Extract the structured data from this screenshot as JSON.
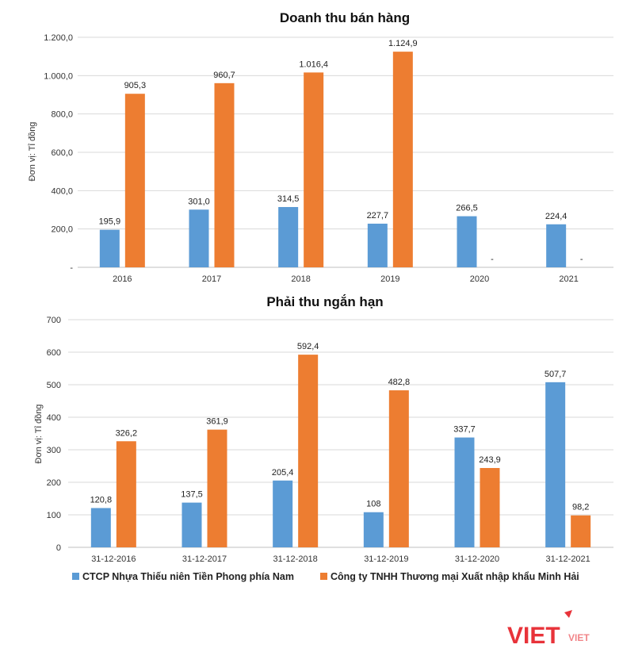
{
  "colors": {
    "blue": "#5b9bd5",
    "orange": "#ed7d31",
    "logo": "#e8333a"
  },
  "legend": [
    {
      "name": "CTCP Nhựa Thiếu niên Tiền Phong phía Nam",
      "color": "#5b9bd5"
    },
    {
      "name": "Công ty TNHH Thương mại Xuất nhập khẩu Minh Hải",
      "color": "#ed7d31"
    }
  ],
  "watermark": {
    "brand": "VIET",
    "small": "VIET"
  },
  "chart_data": [
    {
      "type": "bar",
      "title": "Doanh thu bán hàng",
      "ylabel": "Đơn vị: Tỉ đồng",
      "ylim": [
        0,
        1200
      ],
      "yticks": [
        0,
        200,
        400,
        600,
        800,
        1000,
        1200
      ],
      "ytick_labels": [
        "-",
        "200,0",
        "400,0",
        "600,0",
        "800,0",
        "1.000,0",
        "1.200,0"
      ],
      "categories": [
        "2016",
        "2017",
        "2018",
        "2019",
        "2020",
        "2021"
      ],
      "series": [
        {
          "name": "CTCP Nhựa Thiếu niên Tiền Phong phía Nam",
          "color": "#5b9bd5",
          "values": [
            195.9,
            301.0,
            314.5,
            227.7,
            266.5,
            224.4
          ],
          "labels": [
            "195,9",
            "301,0",
            "314,5",
            "227,7",
            "266,5",
            "224,4"
          ]
        },
        {
          "name": "Công ty TNHH Thương mại Xuất nhập khẩu Minh Hải",
          "color": "#ed7d31",
          "values": [
            905.3,
            960.7,
            1016.4,
            1124.9,
            0,
            0
          ],
          "labels": [
            "905,3",
            "960,7",
            "1.016,4",
            "1.124,9",
            "-",
            "-"
          ]
        }
      ]
    },
    {
      "type": "bar",
      "title": "Phải thu ngắn hạn",
      "ylabel": "Đơn vị: Tỉ đồng",
      "ylim": [
        0,
        700
      ],
      "yticks": [
        0,
        100,
        200,
        300,
        400,
        500,
        600,
        700
      ],
      "ytick_labels": [
        "0",
        "100",
        "200",
        "300",
        "400",
        "500",
        "600",
        "700"
      ],
      "categories": [
        "31-12-2016",
        "31-12-2017",
        "31-12-2018",
        "31-12-2019",
        "31-12-2020",
        "31-12-2021"
      ],
      "series": [
        {
          "name": "CTCP Nhựa Thiếu niên Tiền Phong phía Nam",
          "color": "#5b9bd5",
          "values": [
            120.8,
            137.5,
            205.4,
            108,
            337.7,
            507.7
          ],
          "labels": [
            "120,8",
            "137,5",
            "205,4",
            "108",
            "337,7",
            "507,7"
          ]
        },
        {
          "name": "Công ty TNHH Thương mại Xuất nhập khẩu Minh Hải",
          "color": "#ed7d31",
          "values": [
            326.2,
            361.9,
            592.4,
            482.8,
            243.9,
            98.2
          ],
          "labels": [
            "326,2",
            "361,9",
            "592,4",
            "482,8",
            "243,9",
            "98,2"
          ]
        }
      ]
    }
  ]
}
